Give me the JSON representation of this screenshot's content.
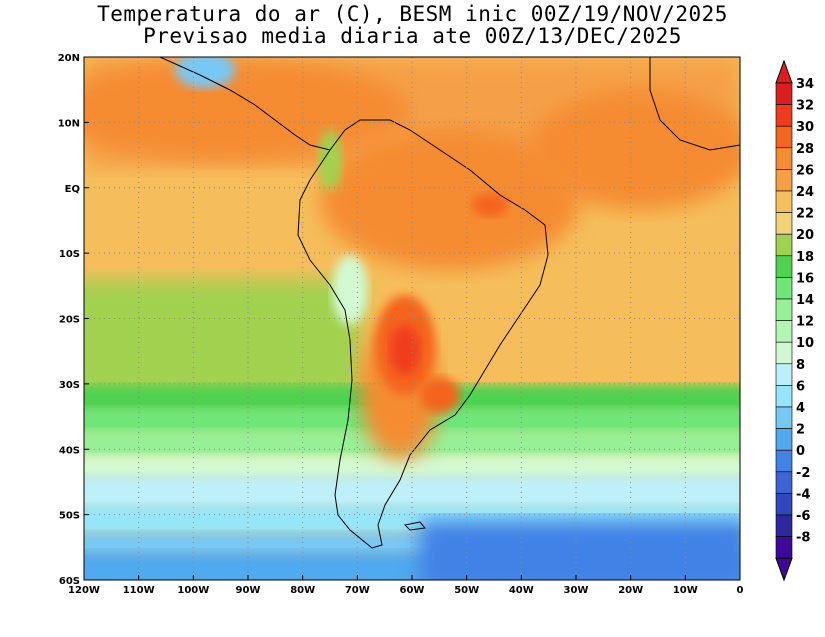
{
  "title": {
    "line1": "Temperatura do ar (C), BESM inic 00Z/19/NOV/2025",
    "line2": "Previsao media diaria ate 00Z/13/DEC/2025"
  },
  "map": {
    "lon_labels": [
      "120W",
      "110W",
      "100W",
      "90W",
      "80W",
      "70W",
      "60W",
      "50W",
      "40W",
      "30W",
      "20W",
      "10W",
      "0"
    ],
    "lat_labels": [
      "20N",
      "10N",
      "EQ",
      "10S",
      "20S",
      "30S",
      "40S",
      "50S",
      "60S"
    ]
  },
  "colorbar": {
    "labels": [
      "34",
      "32",
      "30",
      "28",
      "26",
      "24",
      "22",
      "20",
      "18",
      "16",
      "14",
      "12",
      "10",
      "8",
      "6",
      "4",
      "2",
      "0",
      "-2",
      "-4",
      "-6",
      "-8"
    ],
    "colors": [
      "#dc1e1e",
      "#f03c1e",
      "#f5641e",
      "#f58c32",
      "#f5a046",
      "#f5be5a",
      "#f0d278",
      "#a0d250",
      "#50d250",
      "#6ee678",
      "#96f096",
      "#b4f5b4",
      "#d2fad2",
      "#bef0fa",
      "#96e6fa",
      "#78c8f5",
      "#50aaf0",
      "#4182e6",
      "#3c64d2",
      "#3246be",
      "#2d28a0",
      "#3c0a96"
    ],
    "top_arrow_color": "#dc1e1e",
    "bottom_arrow_color": "#3c0a96"
  },
  "colors": {
    "grid": "#8a8a8a",
    "border": "#000000"
  }
}
